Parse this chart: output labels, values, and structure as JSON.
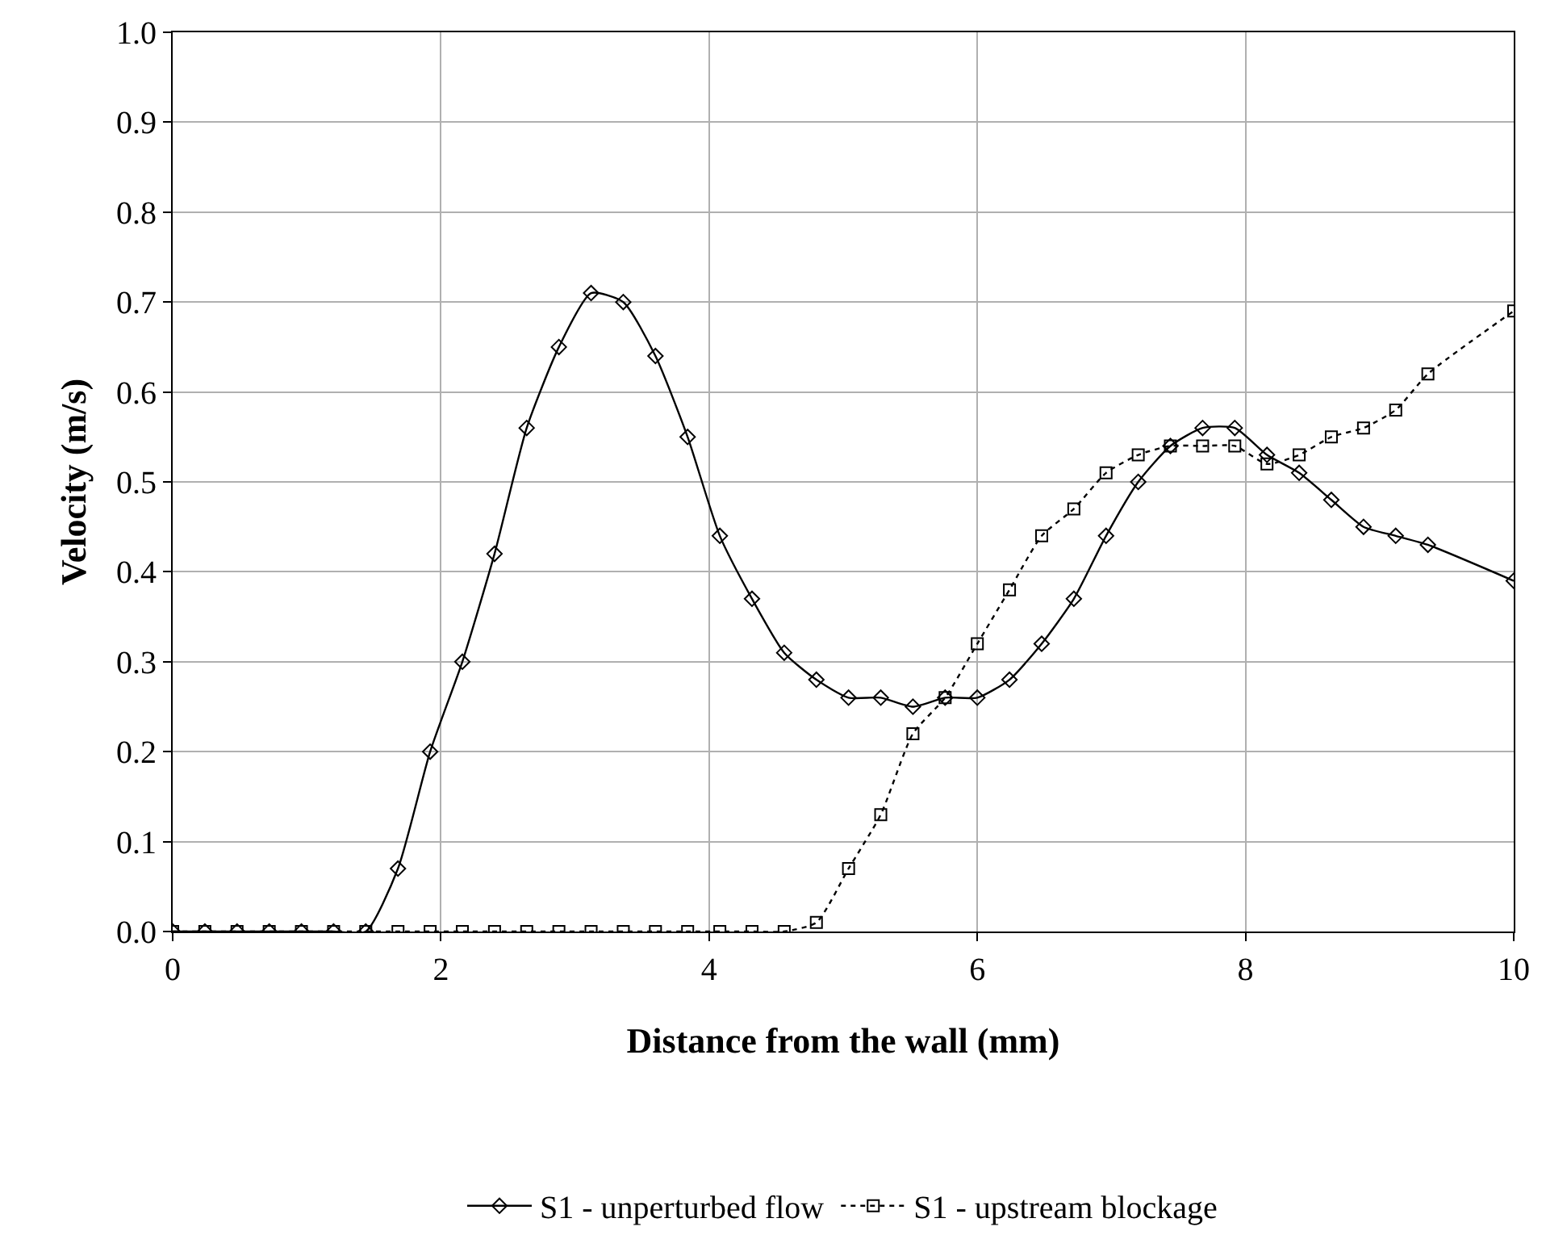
{
  "chart_data": {
    "type": "line",
    "xlabel": "Distance from the wall (mm)",
    "ylabel": "Velocity (m/s)",
    "x": [
      0,
      0.24,
      0.48,
      0.72,
      0.96,
      1.2,
      1.44,
      1.68,
      1.92,
      2.16,
      2.4,
      2.64,
      2.88,
      3.12,
      3.36,
      3.6,
      3.84,
      4.08,
      4.32,
      4.56,
      4.8,
      5.04,
      5.28,
      5.52,
      5.76,
      6,
      6.24,
      6.48,
      6.72,
      6.96,
      7.2,
      7.44,
      7.68,
      7.92,
      8.16,
      8.4,
      8.64,
      8.88,
      9.12,
      9.36,
      10
    ],
    "series": [
      {
        "name": "S1 - unperturbed flow",
        "color": "#000000",
        "marker": "diamond",
        "line_style": "solid",
        "values": [
          0,
          0,
          0,
          0,
          0,
          0,
          0,
          0.07,
          0.2,
          0.3,
          0.42,
          0.56,
          0.65,
          0.71,
          0.7,
          0.64,
          0.55,
          0.44,
          0.37,
          0.31,
          0.28,
          0.26,
          0.26,
          0.25,
          0.26,
          0.26,
          0.28,
          0.32,
          0.37,
          0.44,
          0.5,
          0.54,
          0.56,
          0.56,
          0.53,
          0.51,
          0.48,
          0.45,
          0.44,
          0.43,
          0.39
        ]
      },
      {
        "name": "S1 - upstream blockage",
        "color": "#000000",
        "marker": "square",
        "line_style": "dotted",
        "values": [
          0,
          0,
          0,
          0,
          0,
          0,
          0,
          0,
          0,
          0,
          0,
          0,
          0,
          0,
          0,
          0,
          0,
          0,
          0,
          0,
          0.01,
          0.07,
          0.13,
          0.22,
          0.26,
          0.32,
          0.38,
          0.44,
          0.47,
          0.51,
          0.53,
          0.54,
          0.54,
          0.54,
          0.52,
          0.53,
          0.55,
          0.56,
          0.58,
          0.62,
          0.69
        ]
      }
    ],
    "xlim": [
      0,
      10
    ],
    "xticks": [
      0,
      2,
      4,
      6,
      8,
      10
    ],
    "ylim": [
      0,
      1
    ],
    "yticks": [
      {
        "value": 0,
        "label": "0.0"
      },
      {
        "value": 0.1,
        "label": "0.1"
      },
      {
        "value": 0.2,
        "label": "0.2"
      },
      {
        "value": 0.3,
        "label": "0.3"
      },
      {
        "value": 0.4,
        "label": "0.4"
      },
      {
        "value": 0.5,
        "label": "0.5"
      },
      {
        "value": 0.6,
        "label": "0.6"
      },
      {
        "value": 0.7,
        "label": "0.7"
      },
      {
        "value": 0.8,
        "label": "0.8"
      },
      {
        "value": 0.9,
        "label": "0.9"
      },
      {
        "value": 1,
        "label": "1.0"
      }
    ],
    "grid": true,
    "legend": "bottom"
  }
}
